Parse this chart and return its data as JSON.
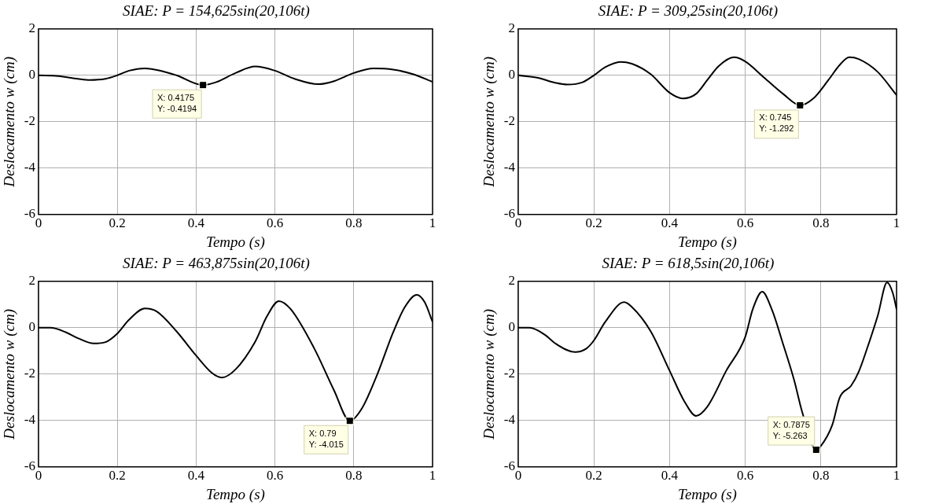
{
  "chart_data": [
    {
      "type": "line",
      "title": "SIAE: P = 154,625sin(20,106t)",
      "xlabel": "Tempo (s)",
      "ylabel": "Deslocamento w (cm)",
      "xlim": [
        0,
        1
      ],
      "ylim": [
        -6,
        2
      ],
      "xticks": [
        0,
        0.2,
        0.4,
        0.6,
        0.8,
        1
      ],
      "yticks": [
        -6,
        -4,
        -2,
        0,
        2
      ],
      "grid": true,
      "x": [
        0,
        0.05,
        0.1,
        0.13,
        0.17,
        0.2,
        0.23,
        0.27,
        0.31,
        0.35,
        0.4175,
        0.45,
        0.5,
        0.55,
        0.6,
        0.65,
        0.71,
        0.75,
        0.8,
        0.85,
        0.9,
        0.95,
        1
      ],
      "series": [
        {
          "color": "#000000",
          "values": [
            0,
            -0.03,
            -0.15,
            -0.2,
            -0.15,
            0,
            0.2,
            0.3,
            0.2,
            0,
            -0.4194,
            -0.3,
            0.1,
            0.38,
            0.2,
            -0.15,
            -0.38,
            -0.25,
            0.1,
            0.3,
            0.25,
            0.05,
            -0.28
          ]
        }
      ],
      "annotations": [
        {
          "text": "X: 0.4175\nY: -0.4194",
          "x": 0.4175,
          "y": -0.4194
        }
      ]
    },
    {
      "type": "line",
      "title": "SIAE: P = 309,25sin(20,106t)",
      "xlabel": "Tempo (s)",
      "ylabel": "Deslocamento w (cm)",
      "xlim": [
        0,
        1
      ],
      "ylim": [
        -6,
        2
      ],
      "xticks": [
        0,
        0.2,
        0.4,
        0.6,
        0.8,
        1
      ],
      "yticks": [
        -6,
        -4,
        -2,
        0,
        2
      ],
      "grid": true,
      "x": [
        0,
        0.05,
        0.1,
        0.13,
        0.17,
        0.2,
        0.23,
        0.27,
        0.3,
        0.35,
        0.4,
        0.435,
        0.47,
        0.5,
        0.53,
        0.57,
        0.6,
        0.65,
        0.7,
        0.745,
        0.78,
        0.82,
        0.85,
        0.875,
        0.9,
        0.95,
        1
      ],
      "series": [
        {
          "color": "#000000",
          "values": [
            0,
            -0.1,
            -0.33,
            -0.4,
            -0.3,
            0,
            0.35,
            0.58,
            0.5,
            0.05,
            -0.75,
            -1.0,
            -0.8,
            -0.2,
            0.4,
            0.78,
            0.6,
            -0.1,
            -0.8,
            -1.292,
            -1.0,
            -0.2,
            0.45,
            0.78,
            0.7,
            0.15,
            -0.85
          ]
        }
      ],
      "annotations": [
        {
          "text": "X: 0.745\nY: -1.292",
          "x": 0.745,
          "y": -1.292
        }
      ]
    },
    {
      "type": "line",
      "title": "SIAE: P = 463,875sin(20,106t)",
      "xlabel": "Tempo (s)",
      "ylabel": "Deslocamento w (cm)",
      "xlim": [
        0,
        1
      ],
      "ylim": [
        -6,
        2
      ],
      "xticks": [
        0,
        0.2,
        0.4,
        0.6,
        0.8,
        1
      ],
      "yticks": [
        -6,
        -4,
        -2,
        0,
        2
      ],
      "grid": true,
      "x": [
        0,
        0.03,
        0.07,
        0.1,
        0.14,
        0.17,
        0.2,
        0.23,
        0.27,
        0.3,
        0.35,
        0.4,
        0.44,
        0.465,
        0.5,
        0.55,
        0.58,
        0.61,
        0.64,
        0.7,
        0.75,
        0.79,
        0.82,
        0.86,
        0.9,
        0.93,
        0.96,
        0.98,
        1
      ],
      "series": [
        {
          "color": "#000000",
          "values": [
            0,
            0,
            -0.2,
            -0.45,
            -0.68,
            -0.62,
            -0.25,
            0.35,
            0.83,
            0.7,
            -0.15,
            -1.2,
            -1.95,
            -2.15,
            -1.8,
            -0.6,
            0.5,
            1.15,
            0.8,
            -0.9,
            -2.7,
            -4.015,
            -3.5,
            -2.0,
            -0.2,
            0.9,
            1.42,
            1.1,
            0.25
          ]
        }
      ],
      "annotations": [
        {
          "text": "X: 0.79\nY: -4.015",
          "x": 0.79,
          "y": -4.015
        }
      ]
    },
    {
      "type": "line",
      "title": "SIAE: P = 618,5sin(20,106t)",
      "xlabel": "Tempo (s)",
      "ylabel": "Deslocamento w (cm)",
      "xlim": [
        0,
        1
      ],
      "ylim": [
        -6,
        2
      ],
      "xticks": [
        0,
        0.2,
        0.4,
        0.6,
        0.8,
        1
      ],
      "yticks": [
        -6,
        -4,
        -2,
        0,
        2
      ],
      "grid": true,
      "x": [
        0,
        0.03,
        0.07,
        0.1,
        0.15,
        0.18,
        0.2,
        0.23,
        0.28,
        0.3,
        0.35,
        0.4,
        0.44,
        0.47,
        0.5,
        0.55,
        0.6,
        0.62,
        0.645,
        0.67,
        0.7,
        0.73,
        0.75,
        0.7875,
        0.8,
        0.83,
        0.85,
        0.88,
        0.9,
        0.92,
        0.95,
        0.975,
        0.99,
        1
      ],
      "series": [
        {
          "color": "#000000",
          "values": [
            0,
            0,
            -0.3,
            -0.7,
            -1.05,
            -0.9,
            -0.55,
            0.25,
            1.1,
            0.9,
            -0.15,
            -1.85,
            -3.2,
            -3.8,
            -3.4,
            -1.85,
            -0.4,
            0.8,
            1.55,
            0.8,
            -0.7,
            -2.3,
            -3.6,
            -5.263,
            -5.1,
            -4.2,
            -3.0,
            -2.5,
            -1.9,
            -1.0,
            0.5,
            1.95,
            1.5,
            0.8
          ]
        }
      ],
      "annotations": [
        {
          "text": "X: 0.7875\nY: -5.263",
          "x": 0.7875,
          "y": -5.263
        }
      ]
    }
  ]
}
